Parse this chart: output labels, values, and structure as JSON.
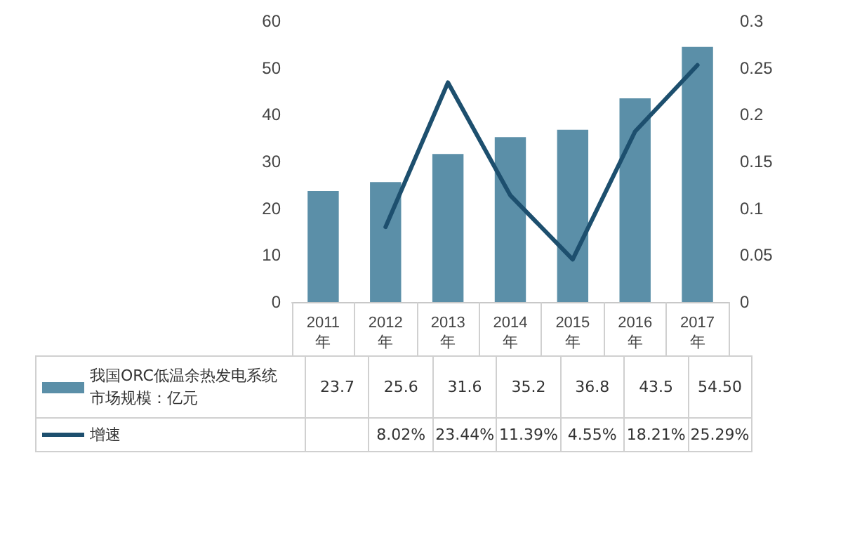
{
  "chart_data": {
    "type": "bar",
    "categories": [
      "2011年",
      "2012年",
      "2013年",
      "2014年",
      "2015年",
      "2016年",
      "2017年"
    ],
    "series": [
      {
        "name": "我国ORC低温余热发电系统市场规模：亿元",
        "color": "#5b8fa8",
        "values": [
          23.7,
          25.6,
          31.6,
          35.2,
          36.8,
          43.5,
          54.5
        ],
        "value_labels": [
          "23.7",
          "25.6",
          "31.6",
          "35.2",
          "36.8",
          "43.5",
          "54.50"
        ]
      },
      {
        "name": "增速",
        "type": "line",
        "axis": "y2",
        "color": "#1d4f6e",
        "values": [
          null,
          0.0802,
          0.2344,
          0.1139,
          0.0455,
          0.1821,
          0.2529
        ],
        "value_labels": [
          null,
          "8.02%",
          "23.44%",
          "11.39%",
          "4.55%",
          "18.21%",
          "25.29%"
        ]
      }
    ],
    "ylim": [
      0,
      60
    ],
    "yticks": [
      0,
      10,
      20,
      30,
      40,
      50,
      60
    ],
    "y2lim": [
      0,
      0.3
    ],
    "y2ticks": [
      0,
      0.05,
      0.1,
      0.15,
      0.2,
      0.25,
      0.3
    ],
    "grid": false,
    "legend": "bottom",
    "marker": "none",
    "line_style": "solid"
  }
}
